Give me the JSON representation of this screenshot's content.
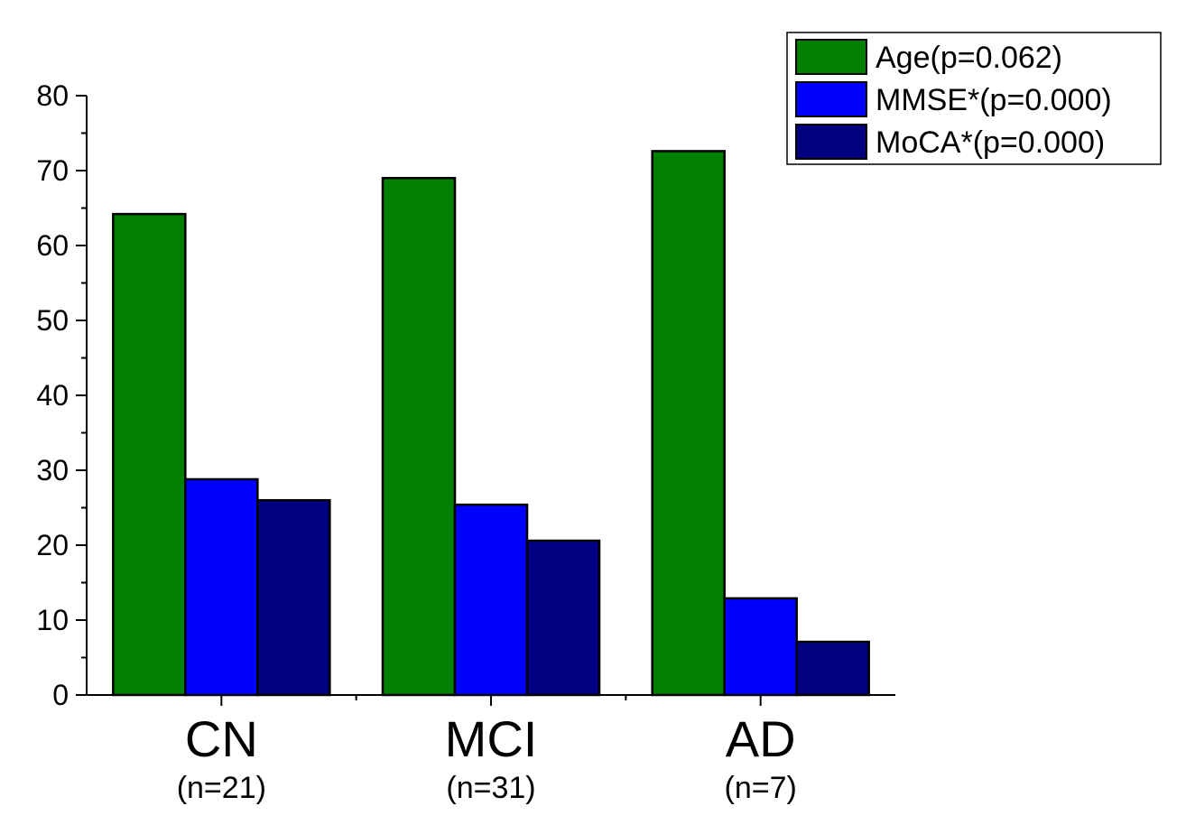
{
  "chart_data": {
    "type": "bar",
    "categories": [
      "CN",
      "MCI",
      "AD"
    ],
    "category_sublabels": [
      "(n=21)",
      "(n=31)",
      "(n=7)"
    ],
    "series": [
      {
        "name": "Age(p=0.062)",
        "color": "#007f00",
        "values": [
          64.2,
          69.0,
          72.6
        ]
      },
      {
        "name": "MMSE*(p=0.000)",
        "color": "#0000ff",
        "values": [
          28.8,
          25.4,
          12.9
        ]
      },
      {
        "name": "MoCA*(p=0.000)",
        "color": "#000080",
        "values": [
          26.0,
          20.6,
          7.1
        ]
      }
    ],
    "title": "",
    "xlabel": "",
    "ylabel": "",
    "ylim": [
      0,
      80
    ],
    "y_ticks": [
      "0",
      "10",
      "20",
      "30",
      "40",
      "50",
      "60",
      "70",
      "80"
    ],
    "grid": false,
    "legend_position": "top-right"
  }
}
